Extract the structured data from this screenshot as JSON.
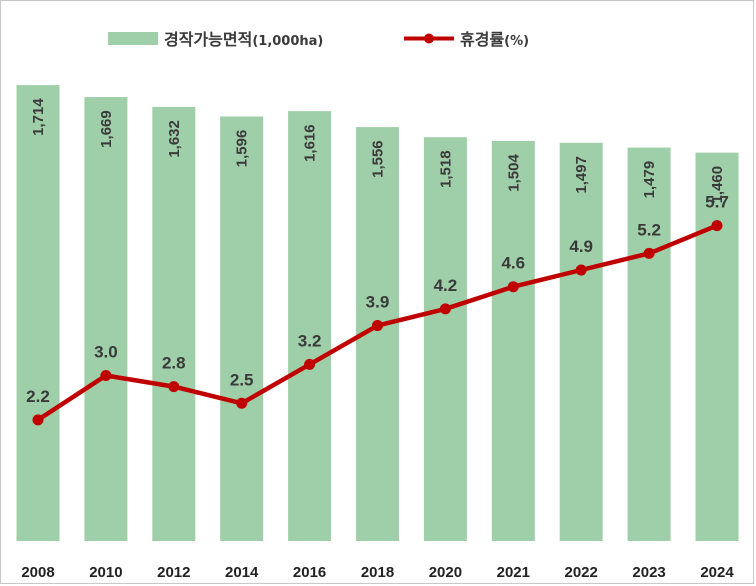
{
  "chart_data": {
    "type": "bar+line",
    "categories": [
      "2008",
      "2010",
      "2012",
      "2014",
      "2016",
      "2018",
      "2020",
      "2021",
      "2022",
      "2023",
      "2024"
    ],
    "series": [
      {
        "name": "경작가능면적",
        "unit": "(1,000ha)",
        "kind": "bar",
        "color": "#9fcfa8",
        "values": [
          1714,
          1669,
          1632,
          1596,
          1616,
          1556,
          1518,
          1504,
          1497,
          1479,
          1460
        ],
        "labels": [
          "1,714",
          "1,669",
          "1,632",
          "1,596",
          "1,616",
          "1,556",
          "1,518",
          "1,504",
          "1,497",
          "1,479",
          "1,460"
        ]
      },
      {
        "name": "휴경률",
        "unit": "(%)",
        "kind": "line",
        "color": "#c00000",
        "values": [
          2.2,
          3.0,
          2.8,
          2.5,
          3.2,
          3.9,
          4.2,
          4.6,
          4.9,
          5.2,
          5.7
        ],
        "labels": [
          "2.2",
          "3.0",
          "2.8",
          "2.5",
          "3.2",
          "3.9",
          "4.2",
          "4.6",
          "4.9",
          "5.2",
          "5.7"
        ]
      }
    ],
    "bar_axis_range": [
      0,
      1950
    ],
    "line_axis_range": [
      0,
      6.0
    ],
    "grid": false,
    "legend_position": "top-center"
  }
}
